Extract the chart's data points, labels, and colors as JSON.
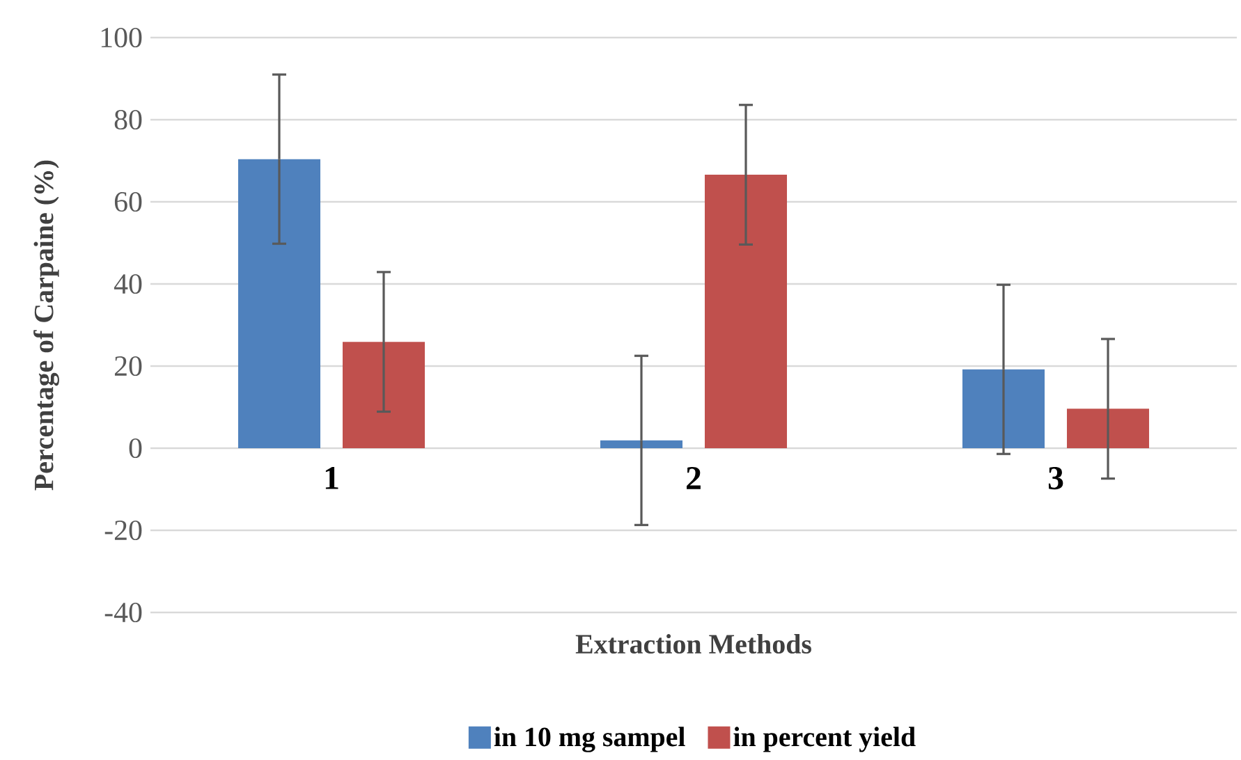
{
  "chart_data": {
    "type": "bar",
    "xlabel": "Extraction Methods",
    "ylabel": "Percentage of Carpaine (%)",
    "categories": [
      "1",
      "2",
      "3"
    ],
    "series": [
      {
        "name": "in 10 mg sampel",
        "color": "#4f81bd",
        "values": [
          70.4,
          1.9,
          19.2
        ],
        "errors": [
          20.6,
          20.6,
          20.6
        ]
      },
      {
        "name": "in percent yield",
        "color": "#c0504d",
        "values": [
          25.9,
          66.6,
          9.6
        ],
        "errors": [
          17.0,
          17.0,
          17.0
        ]
      }
    ],
    "ylim": [
      -40,
      100
    ],
    "yticks": [
      -40,
      -20,
      0,
      20,
      40,
      60,
      80,
      100
    ],
    "grid": "y",
    "legend": "bottom"
  }
}
